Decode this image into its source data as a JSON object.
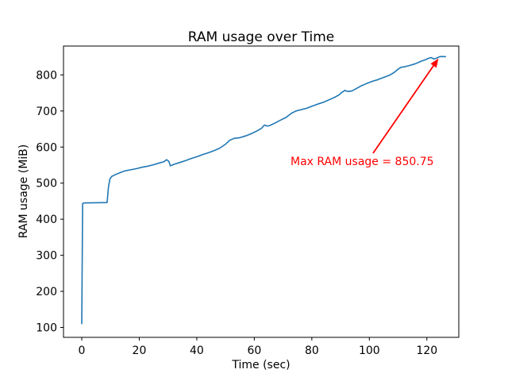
{
  "chart_data": {
    "type": "line",
    "title": "RAM usage over Time",
    "xlabel": "Time (sec)",
    "ylabel": "RAM usage (MiB)",
    "line_color": "#1f77b4",
    "grid": false,
    "legend_position": "none",
    "xlim": [
      -6.35,
      131.1
    ],
    "ylim": [
      72.5,
      880
    ],
    "xticks": [
      0,
      20,
      40,
      60,
      80,
      100,
      120
    ],
    "yticks": [
      100,
      200,
      300,
      400,
      500,
      600,
      700,
      800
    ],
    "x": [
      0,
      0.3,
      0.7,
      8.8,
      9.3,
      9.8,
      10.5,
      11.5,
      13,
      15,
      17,
      19,
      21,
      23,
      25,
      27,
      28.5,
      29.5,
      30.3,
      30.8,
      32,
      34,
      36,
      38,
      40,
      42,
      44,
      46,
      48,
      50,
      51.5,
      53,
      55,
      57,
      59,
      61,
      62.5,
      63.5,
      64.5,
      65.5,
      67,
      69,
      71,
      73,
      74.5,
      76,
      78,
      80,
      82,
      84,
      86,
      88,
      89.5,
      90.5,
      91.5,
      92.5,
      94,
      95.5,
      97,
      99,
      101,
      103,
      105,
      107,
      108.5,
      110,
      111,
      112.5,
      114,
      116,
      118,
      119.5,
      120.5,
      121.5,
      122.5,
      123.5,
      124.5,
      126.5
    ],
    "y": [
      110.25,
      443,
      445,
      446,
      490,
      512,
      519,
      523,
      528,
      534,
      537,
      540,
      544,
      547,
      551,
      556,
      559,
      565,
      560,
      548,
      552,
      557,
      562,
      568,
      573,
      579,
      584,
      590,
      597,
      608,
      619,
      624,
      626,
      631,
      637,
      645,
      652,
      661,
      658,
      660,
      666,
      674,
      682,
      694,
      700,
      703,
      707,
      713,
      719,
      724,
      731,
      738,
      745,
      752,
      757,
      754,
      756,
      762,
      769,
      776,
      782,
      787,
      793,
      799,
      806,
      816,
      821,
      823,
      826,
      831,
      838,
      842,
      846,
      848,
      844,
      847,
      850.75,
      850.75
    ],
    "max_ram_mib": 850.75,
    "annotation": {
      "text": "Max RAM usage = 850.75",
      "color": "#ff0000",
      "target_x": 124.5,
      "target_y": 850.75
    }
  }
}
